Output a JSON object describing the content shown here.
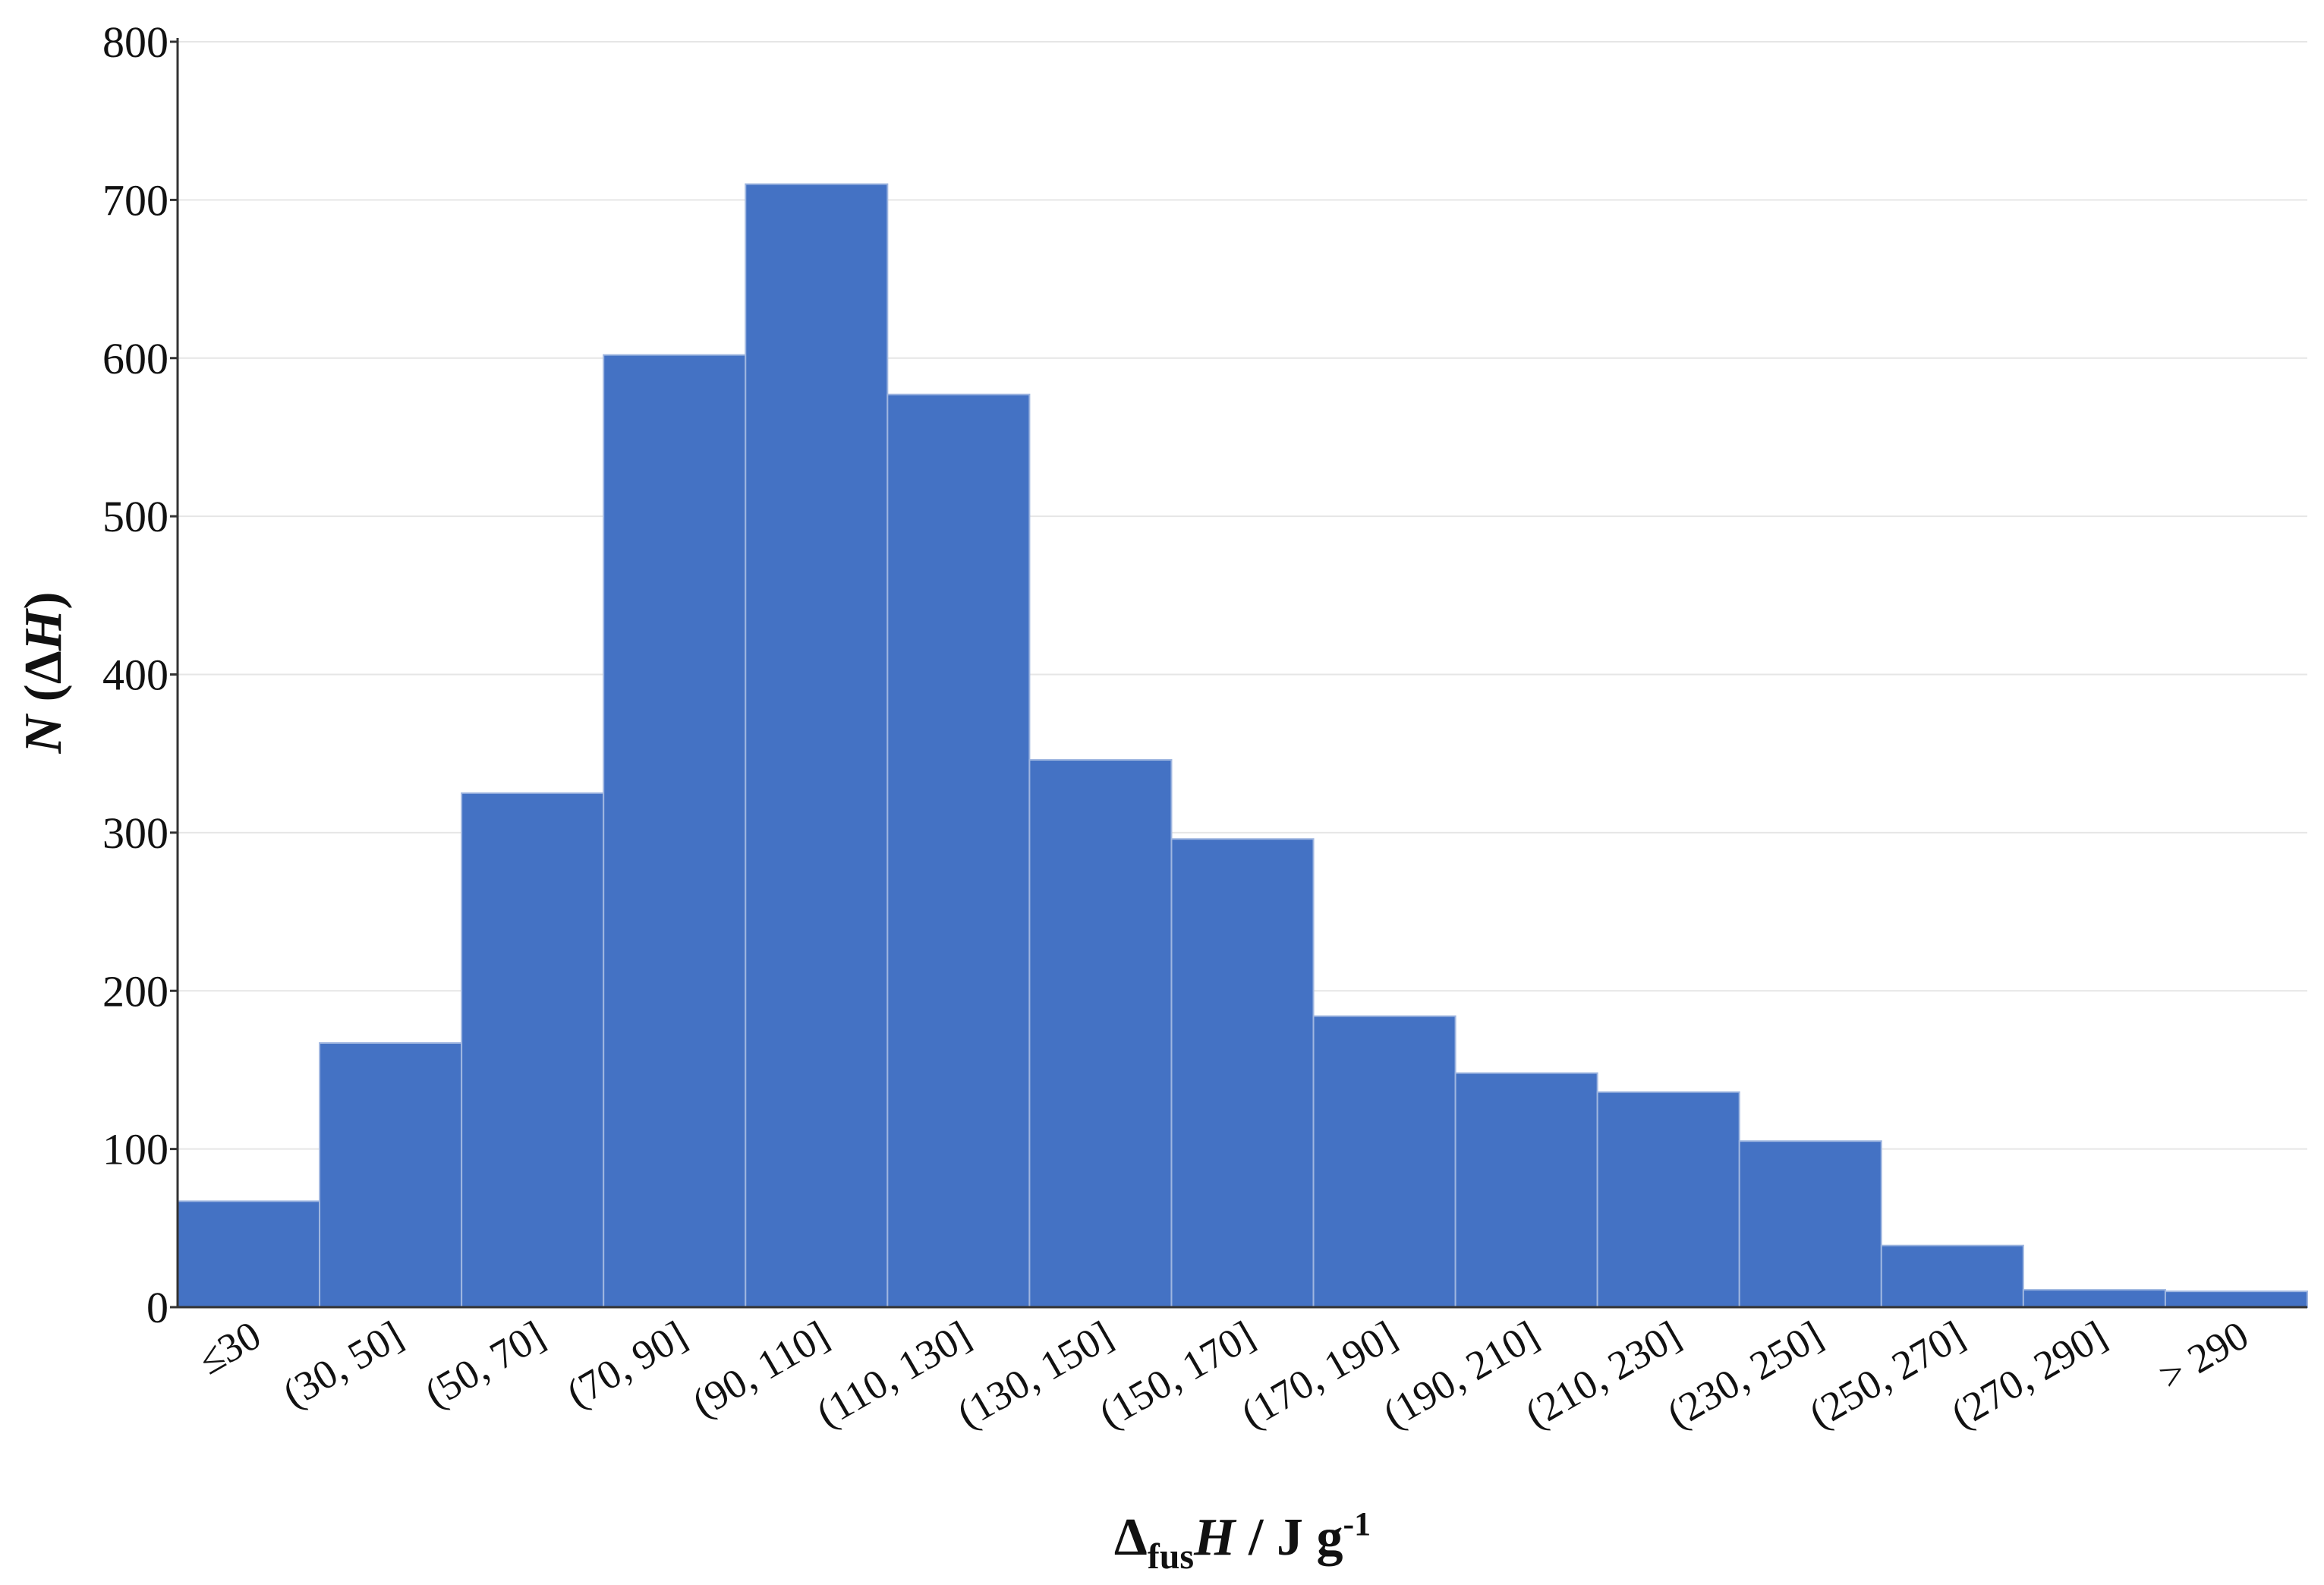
{
  "chart_data": {
    "type": "bar",
    "categories": [
      "≤30",
      "(30, 50]",
      "(50, 70]",
      "(70, 90]",
      "(90, 110]",
      "(110, 130]",
      "(130, 150]",
      "(150, 170]",
      "(170, 190]",
      "(190, 210]",
      "(210, 230]",
      "(230, 250]",
      "(250, 270]",
      "(270, 290]",
      "> 290"
    ],
    "values": [
      67,
      167,
      325,
      602,
      710,
      577,
      346,
      296,
      184,
      148,
      136,
      105,
      39,
      11,
      10
    ],
    "ylim": [
      0,
      800
    ],
    "yticks": [
      0,
      100,
      200,
      300,
      400,
      500,
      600,
      700,
      800
    ],
    "grid": true,
    "bar_color": "#4472C4",
    "ylabel": {
      "N": "N",
      "paren_open": " (Δ",
      "H": "H",
      "paren_close": ")"
    },
    "xlabel": {
      "delta": "Δ",
      "sub": "fus",
      "H": "H",
      "rest": " / J g",
      "sup": "-1"
    }
  }
}
